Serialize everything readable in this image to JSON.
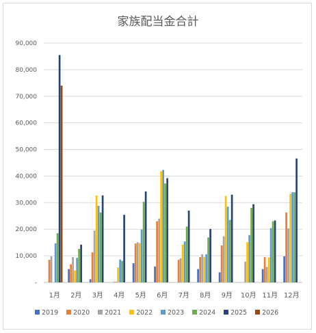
{
  "chart_data": {
    "type": "bar",
    "title": "家族配当金合計",
    "xlabel": "",
    "ylabel": "",
    "ylim": [
      0,
      90000
    ],
    "yticks": [
      0,
      10000,
      20000,
      30000,
      40000,
      50000,
      60000,
      70000,
      80000,
      90000
    ],
    "ytick_labels": [
      "-",
      "10,000",
      "20,000",
      "30,000",
      "40,000",
      "50,000",
      "60,000",
      "70,000",
      "80,000",
      "90,000"
    ],
    "grid": true,
    "legend_position": "bottom",
    "categories": [
      "1月",
      "2月",
      "3月",
      "4月",
      "5月",
      "6月",
      "7月",
      "8月",
      "9月",
      "10月",
      "11月",
      "12月"
    ],
    "series": [
      {
        "name": "2019",
        "color": "#4472c4",
        "values": [
          0,
          5000,
          1200,
          0,
          7200,
          6000,
          0,
          5000,
          3800,
          0,
          5000,
          9800
        ]
      },
      {
        "name": "2020",
        "color": "#ed7d31",
        "values": [
          8500,
          6800,
          11300,
          200,
          14600,
          23000,
          8500,
          9500,
          13900,
          0,
          9500,
          26300
        ]
      },
      {
        "name": "2021",
        "color": "#a5a5a5",
        "values": [
          9800,
          9500,
          19500,
          300,
          15100,
          24000,
          9100,
          10600,
          17300,
          7800,
          5800,
          20300
        ]
      },
      {
        "name": "2022",
        "color": "#ffc000",
        "values": [
          0,
          4500,
          32700,
          5600,
          14800,
          41800,
          14200,
          9600,
          32500,
          15100,
          9400,
          33300
        ]
      },
      {
        "name": "2023",
        "color": "#5b9bd5",
        "values": [
          14700,
          9200,
          28800,
          8600,
          19900,
          42300,
          15400,
          10600,
          28500,
          17800,
          20400,
          33900
        ]
      },
      {
        "name": "2024",
        "color": "#70ad47",
        "values": [
          18500,
          12600,
          26300,
          8100,
          30300,
          37200,
          21000,
          16900,
          23500,
          28000,
          23000,
          33900
        ]
      },
      {
        "name": "2025",
        "color": "#264478",
        "values": [
          85500,
          14200,
          32700,
          25400,
          34200,
          39200,
          27000,
          20100,
          33000,
          29400,
          23300,
          46600
        ]
      },
      {
        "name": "2026",
        "color": "#9e480e",
        "values": [
          74000,
          0,
          0,
          0,
          0,
          0,
          0,
          0,
          0,
          0,
          0,
          0
        ]
      }
    ]
  }
}
